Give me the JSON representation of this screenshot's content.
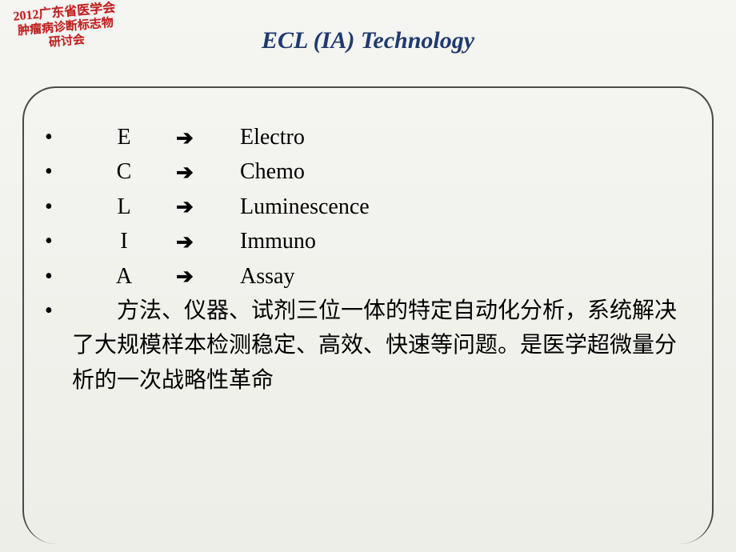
{
  "stamp": {
    "line1": "2012广东省医学会",
    "line2": "肿瘤病诊断标志物",
    "line3": "研讨会",
    "color": "#c02020",
    "fontsize": 16
  },
  "title": {
    "text": "ECL (IA) Technology",
    "color": "#1f3a6e",
    "fontsize": 30,
    "italic": true,
    "bold": true
  },
  "frame": {
    "border_color": "#4a4a4a",
    "border_width": 2.5,
    "border_radius": 42
  },
  "acronym_rows": [
    {
      "letter": "E",
      "arrow": "➔",
      "word": "Electro"
    },
    {
      "letter": "C",
      "arrow": "➔",
      "word": "Chemo"
    },
    {
      "letter": "L",
      "arrow": "➔",
      "word": "Luminescence"
    },
    {
      "letter": "I",
      "arrow": "➔",
      "word": "Immuno"
    },
    {
      "letter": "A",
      "arrow": "➔",
      "word": "Assay"
    }
  ],
  "blank_bullet": "",
  "description": {
    "prefix_indent": "　　",
    "text": "方法、仪器、试剂三位一体的特定自动化分析，系统解决了大规模样本检测稳定、高效、快速等问题。是医学超微量分析的一次战略性革命"
  },
  "background": {
    "gradient_top": "#f5f5f2",
    "gradient_bottom": "#eeeee8"
  },
  "body_fontsize": 28,
  "body_color": "#000000"
}
